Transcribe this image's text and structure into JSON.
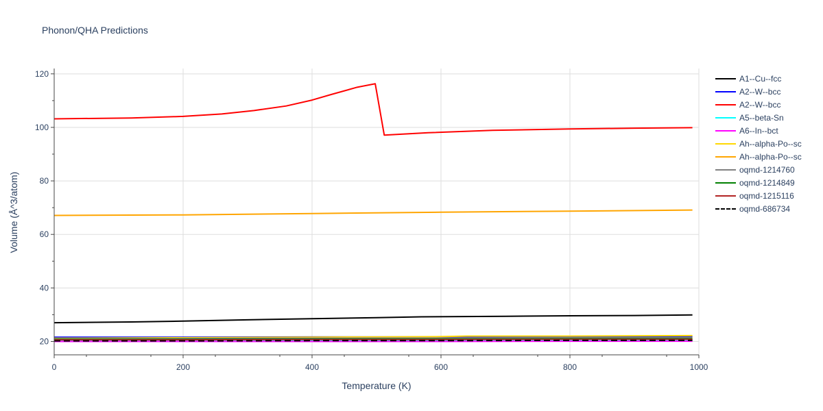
{
  "chart_data": {
    "type": "line",
    "title": "Phonon/QHA Predictions",
    "xlabel": "Temperature (K)",
    "ylabel": "Volume (Å^3/atom)",
    "xlim": [
      0,
      1000
    ],
    "ylim": [
      15,
      122
    ],
    "xticks": [
      0,
      200,
      400,
      600,
      800,
      1000
    ],
    "yticks": [
      20,
      40,
      60,
      80,
      100,
      120
    ],
    "grid": true,
    "legend_position": "right",
    "series": [
      {
        "name": "A1--Cu--fcc",
        "color": "#000000",
        "dash": "solid",
        "x": [
          0,
          120,
          200,
          300,
          400,
          500,
          570,
          700,
          800,
          900,
          990
        ],
        "y": [
          27.0,
          27.3,
          27.6,
          28.1,
          28.5,
          28.9,
          29.2,
          29.4,
          29.6,
          29.7,
          29.9
        ]
      },
      {
        "name": "A2--W--bcc",
        "color": "#0000ff",
        "dash": "solid",
        "x": [
          0,
          200,
          400,
          600,
          800,
          990
        ],
        "y": [
          21.6,
          21.6,
          21.7,
          21.7,
          21.8,
          21.8
        ]
      },
      {
        "name": "A2--W--bcc",
        "color": "#ff0000",
        "dash": "solid",
        "x": [
          0,
          120,
          200,
          260,
          310,
          360,
          400,
          430,
          470,
          498,
          512,
          580,
          680,
          800,
          900,
          990
        ],
        "y": [
          103.2,
          103.5,
          104.1,
          105.0,
          106.3,
          108.0,
          110.2,
          112.3,
          115.0,
          116.3,
          97.1,
          98.0,
          98.9,
          99.4,
          99.7,
          99.9
        ]
      },
      {
        "name": "A5--beta-Sn",
        "color": "#00ffff",
        "dash": "solid",
        "x": [
          0,
          200,
          400,
          600,
          800,
          990
        ],
        "y": [
          20.4,
          20.4,
          20.5,
          20.5,
          20.6,
          20.6
        ]
      },
      {
        "name": "A6--In--bct",
        "color": "#ff00ff",
        "dash": "solid",
        "x": [
          0,
          200,
          400,
          600,
          800,
          990
        ],
        "y": [
          20.0,
          20.0,
          20.0,
          20.0,
          20.1,
          20.1
        ]
      },
      {
        "name": "Ah--alpha-Po--sc",
        "color": "#ffd700",
        "dash": "solid",
        "x": [
          0,
          200,
          400,
          600,
          640,
          800,
          990
        ],
        "y": [
          21.2,
          21.4,
          21.6,
          21.8,
          22.0,
          22.0,
          22.2
        ]
      },
      {
        "name": "Ah--alpha-Po--sc",
        "color": "#ffa500",
        "dash": "solid",
        "x": [
          0,
          200,
          400,
          600,
          800,
          990
        ],
        "y": [
          67.1,
          67.3,
          67.8,
          68.3,
          68.7,
          69.1
        ]
      },
      {
        "name": "oqmd-1214760",
        "color": "#808080",
        "dash": "solid",
        "x": [
          0,
          200,
          400,
          600,
          800,
          990
        ],
        "y": [
          21.0,
          21.1,
          21.2,
          21.3,
          21.4,
          21.5
        ]
      },
      {
        "name": "oqmd-1214849",
        "color": "#008000",
        "dash": "solid",
        "x": [
          0,
          200,
          400,
          600,
          800,
          990
        ],
        "y": [
          20.8,
          20.8,
          20.9,
          20.9,
          21.0,
          21.0
        ]
      },
      {
        "name": "oqmd-1215116",
        "color": "#b22222",
        "dash": "solid",
        "x": [
          0,
          200,
          400,
          600,
          800,
          990
        ],
        "y": [
          20.6,
          20.6,
          20.7,
          20.7,
          20.8,
          20.8
        ]
      },
      {
        "name": "oqmd-686734",
        "color": "#000000",
        "dash": "dash",
        "x": [
          0,
          200,
          400,
          600,
          800,
          990
        ],
        "y": [
          20.2,
          20.2,
          20.3,
          20.3,
          20.4,
          20.4
        ]
      }
    ]
  }
}
